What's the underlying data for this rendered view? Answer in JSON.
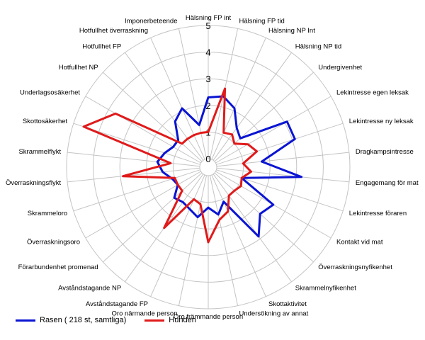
{
  "chart_data": {
    "type": "radar",
    "title": "",
    "rmin": 0,
    "rmax": 5,
    "ticks": [
      0,
      1,
      2,
      3,
      4,
      5
    ],
    "grid": true,
    "legend_position": "bottom-left",
    "categories": [
      "Hälsning FP int",
      "Hälsning FP tid",
      "Hälsning NP Int",
      "Hälsning NP tid",
      "Undergivenhet",
      "Lekintresse egen leksak",
      "Lekintresse ny leksak",
      "Dragkampsintresse",
      "Engagemang för mat",
      "Lekintresse föraren",
      "Kontakt vid mat",
      "Överraskningsnyfikenhet",
      "Skrammelnyfikenhet",
      "Skottaktivitet",
      "Undersökning av annat",
      "Oro främmande person",
      "Oro närmande person",
      "Avståndstagande FP",
      "Avståndstagande NP",
      "Förarbundenhet promenad",
      "Överraskningsoro",
      "Skrammeloro",
      "Överraskningsflykt",
      "Skrammelflykt",
      "Skottosäkerhet",
      "Underlagsosäkerhet",
      "Hotfullhet NP",
      "Hotfullhet FP",
      "Hotfullhet överraskning",
      "Imponerbeteende"
    ],
    "series": [
      {
        "name": "Rasen ( 218 st, samtliga)",
        "color": "#0a14d2",
        "values": [
          2.3,
          2.4,
          2.1,
          1.5,
          1.3,
          3.1,
          3.1,
          1.7,
          3.2,
          1.0,
          2.5,
          2.3,
          2.9,
          1.1,
          1.5,
          1.2,
          1.6,
          1.4,
          1.3,
          1.4,
          1.0,
          1.1,
          1.4,
          1.6,
          1.4,
          1.2,
          1.2,
          1.8,
          2.1,
          1.3
        ]
      },
      {
        "name": "Hunden",
        "color": "#e01a1a",
        "values": [
          1.0,
          2.7,
          1.1,
          1.2,
          1.0,
          1.4,
          1.6,
          1.0,
          1.3,
          1.0,
          1.1,
          1.0,
          1.0,
          1.5,
          1.7,
          2.5,
          1.1,
          1.0,
          2.5,
          1.0,
          1.0,
          1.0,
          2.9,
          1.1,
          4.6,
          3.7,
          1.0,
          1.0,
          1.0,
          1.0
        ]
      }
    ]
  }
}
